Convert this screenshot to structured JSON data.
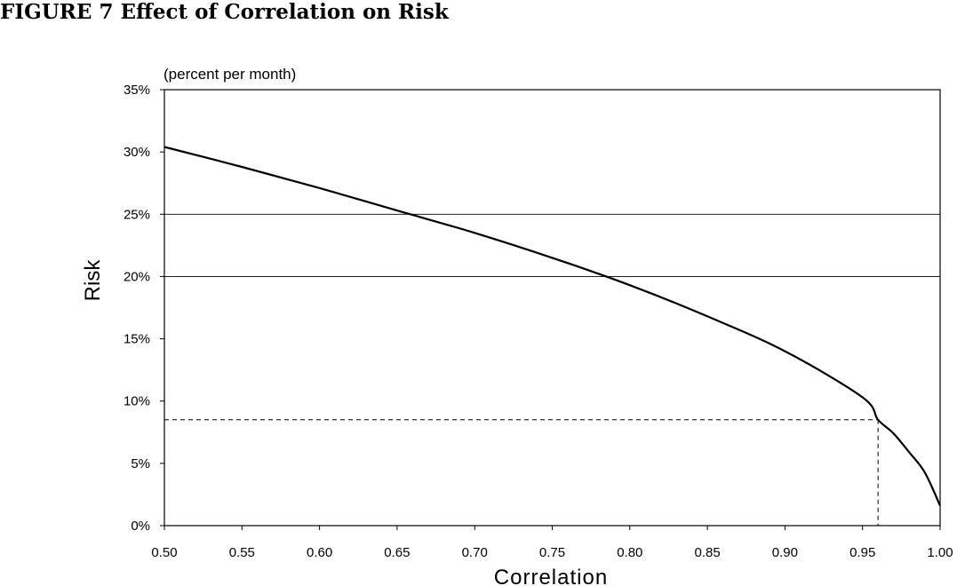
{
  "figure_title": "FIGURE 7 Effect of Correlation on Risk",
  "chart_data": {
    "type": "line",
    "title": "",
    "xlabel": "Correlation",
    "ylabel": "Risk",
    "unit_note": "(percent per month)",
    "xlim": [
      0.5,
      1.0
    ],
    "ylim": [
      0,
      35
    ],
    "x_ticks": [
      "0.50",
      "0.55",
      "0.60",
      "0.65",
      "0.70",
      "0.75",
      "0.80",
      "0.85",
      "0.90",
      "0.95",
      "1.00"
    ],
    "y_ticks": [
      "0%",
      "5%",
      "10%",
      "15%",
      "20%",
      "25%",
      "30%",
      "35%"
    ],
    "gridlines_y": [
      20,
      25
    ],
    "series": [
      {
        "x": [
          0.5,
          0.55,
          0.6,
          0.65,
          0.7,
          0.75,
          0.8,
          0.85,
          0.9,
          0.95,
          0.96,
          0.97,
          0.98,
          0.99,
          1.0
        ],
        "y": [
          30.4,
          28.8,
          27.1,
          25.3,
          23.5,
          21.5,
          19.3,
          16.8,
          14.0,
          10.3,
          8.5,
          7.4,
          5.9,
          4.3,
          1.6
        ]
      }
    ],
    "reference_point": {
      "x": 0.96,
      "y": 8.5
    }
  }
}
